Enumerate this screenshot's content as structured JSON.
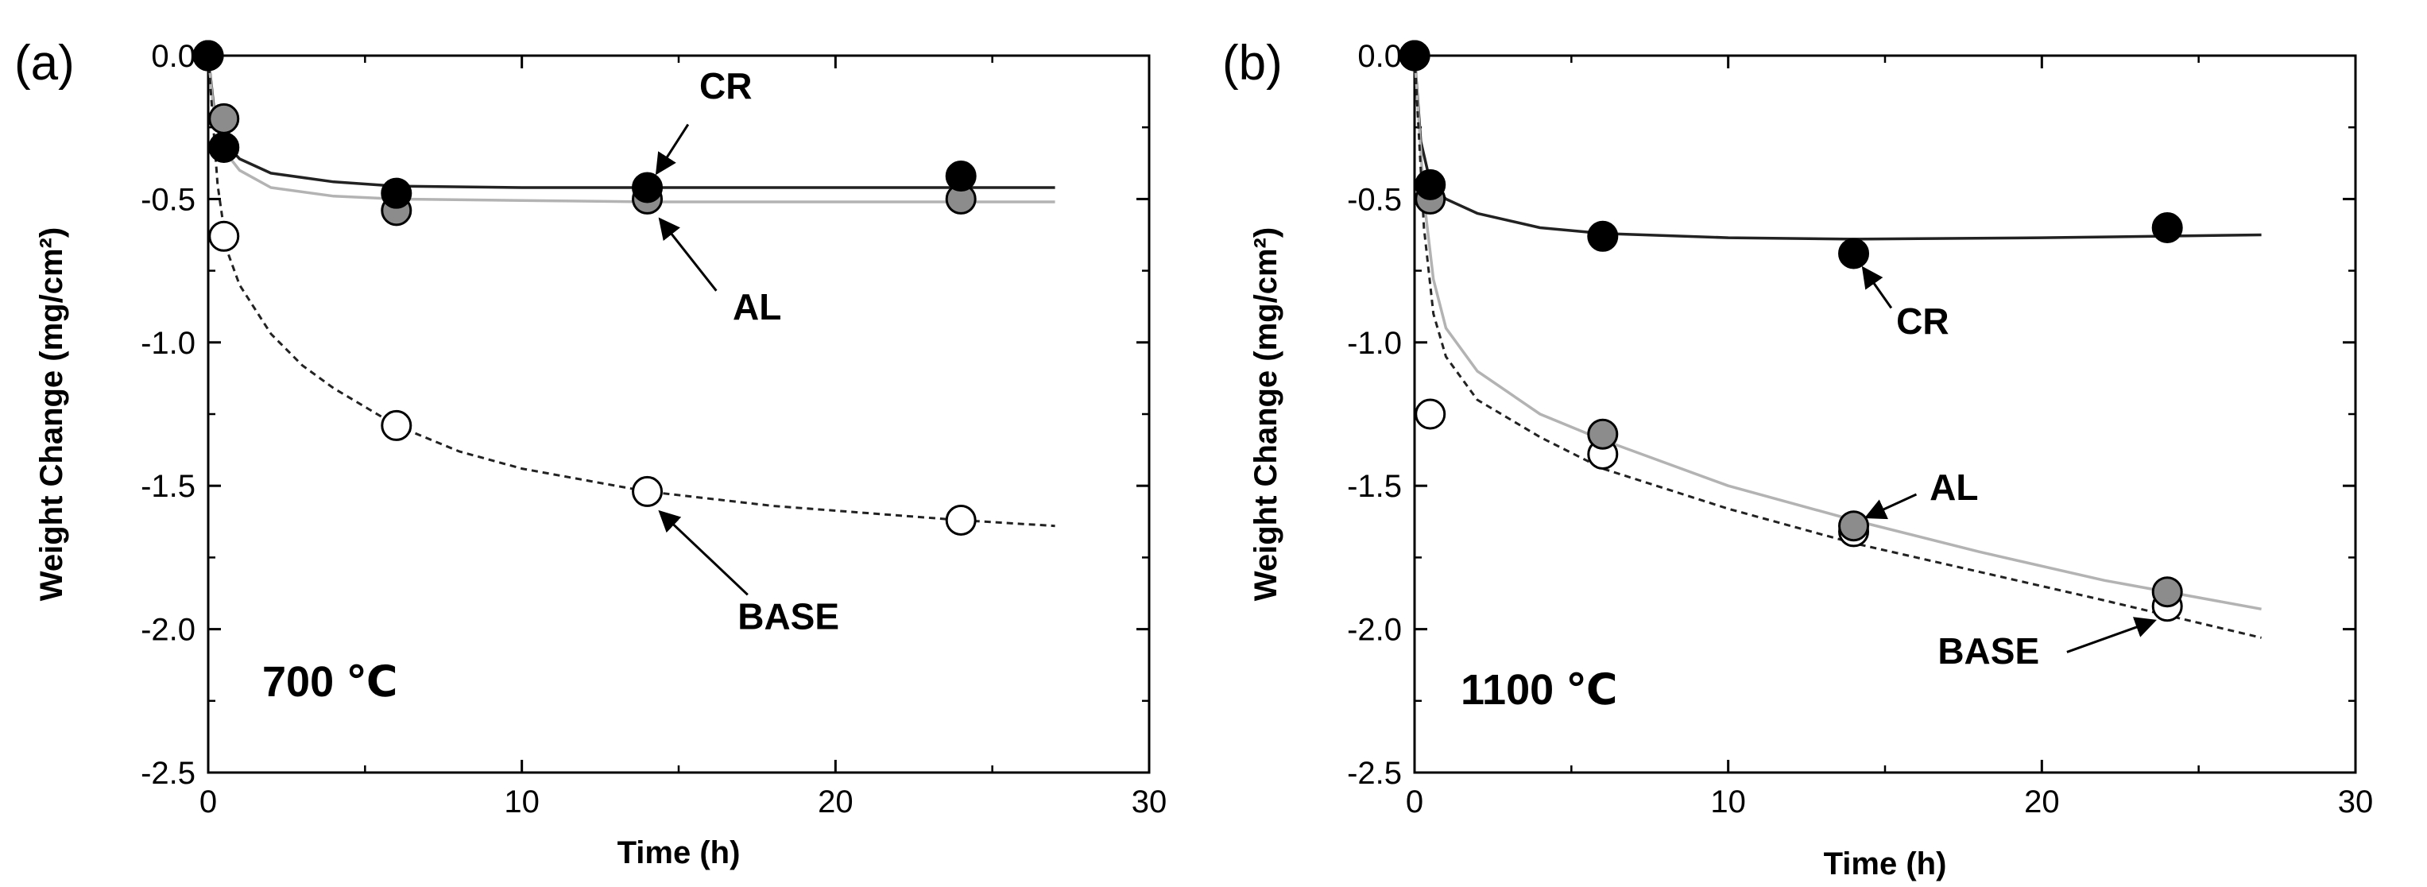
{
  "chart_data": [
    {
      "type": "scatter",
      "panel_label": "(a)",
      "annotation": "700 ℃",
      "xlabel": "Time (h)",
      "ylabel": "Weight Change (mg/cm²)",
      "xlim": [
        0,
        30
      ],
      "ylim": [
        -2.5,
        0.0
      ],
      "xticks": [
        "0",
        "10",
        "20",
        "30"
      ],
      "yticks": [
        "0.0",
        "-0.5",
        "-1.0",
        "-1.5",
        "-2.0",
        "-2.5"
      ],
      "series": [
        {
          "name": "CR",
          "marker": "filled",
          "color": "#000000",
          "x": [
            0,
            0.5,
            6,
            14,
            24
          ],
          "y": [
            0.0,
            -0.32,
            -0.48,
            -0.46,
            -0.42
          ],
          "fit": [
            [
              0,
              0
            ],
            [
              0.2,
              -0.2
            ],
            [
              0.5,
              -0.3
            ],
            [
              1,
              -0.36
            ],
            [
              2,
              -0.41
            ],
            [
              4,
              -0.44
            ],
            [
              6,
              -0.455
            ],
            [
              10,
              -0.46
            ],
            [
              14,
              -0.46
            ],
            [
              20,
              -0.46
            ],
            [
              27,
              -0.46
            ]
          ]
        },
        {
          "name": "AL",
          "marker": "gray",
          "color": "#8c8c8c",
          "x": [
            0,
            0.5,
            6,
            14,
            24
          ],
          "y": [
            0.0,
            -0.22,
            -0.54,
            -0.5,
            -0.5
          ],
          "fit": [
            [
              0,
              0
            ],
            [
              0.2,
              -0.22
            ],
            [
              0.5,
              -0.33
            ],
            [
              1,
              -0.4
            ],
            [
              2,
              -0.46
            ],
            [
              4,
              -0.49
            ],
            [
              6,
              -0.5
            ],
            [
              10,
              -0.505
            ],
            [
              14,
              -0.51
            ],
            [
              20,
              -0.51
            ],
            [
              27,
              -0.51
            ]
          ]
        },
        {
          "name": "BASE",
          "marker": "open",
          "color": "#ffffff",
          "x": [
            0,
            0.5,
            6,
            14,
            24
          ],
          "y": [
            0.0,
            -0.63,
            -1.29,
            -1.52,
            -1.62
          ],
          "fit": [
            [
              0,
              0
            ],
            [
              0.3,
              -0.45
            ],
            [
              0.6,
              -0.68
            ],
            [
              1,
              -0.8
            ],
            [
              2,
              -0.97
            ],
            [
              3,
              -1.08
            ],
            [
              4,
              -1.16
            ],
            [
              6,
              -1.29
            ],
            [
              8,
              -1.38
            ],
            [
              10,
              -1.44
            ],
            [
              14,
              -1.52
            ],
            [
              18,
              -1.57
            ],
            [
              24,
              -1.62
            ],
            [
              27,
              -1.64
            ]
          ]
        }
      ],
      "labels": [
        {
          "text": "CR",
          "lx": 16.5,
          "ly": -0.15,
          "ax1": 15.3,
          "ay1": -0.24,
          "ax2": 14.3,
          "ay2": -0.41
        },
        {
          "text": "AL",
          "lx": 17.5,
          "ly": -0.92,
          "ax1": 16.2,
          "ay1": -0.82,
          "ax2": 14.4,
          "ay2": -0.57
        },
        {
          "text": "BASE",
          "lx": 18.5,
          "ly": -2.0,
          "ax1": 17.2,
          "ay1": -1.88,
          "ax2": 14.4,
          "ay2": -1.59
        }
      ]
    },
    {
      "type": "scatter",
      "panel_label": "(b)",
      "annotation": "1100 ℃",
      "xlabel": "Time (h)",
      "ylabel": "Weight Change (mg/cm²)",
      "xlim": [
        0,
        30
      ],
      "ylim": [
        -2.5,
        0.0
      ],
      "xticks": [
        "0",
        "10",
        "20",
        "30"
      ],
      "yticks": [
        "0.0",
        "-0.5",
        "-1.0",
        "-1.5",
        "-2.0",
        "-2.5"
      ],
      "series": [
        {
          "name": "CR",
          "marker": "filled",
          "color": "#000000",
          "x": [
            0,
            0.5,
            6,
            14,
            24
          ],
          "y": [
            0.0,
            -0.45,
            -0.63,
            -0.69,
            -0.6
          ],
          "fit": [
            [
              0,
              0
            ],
            [
              0.2,
              -0.3
            ],
            [
              0.5,
              -0.44
            ],
            [
              1,
              -0.5
            ],
            [
              2,
              -0.55
            ],
            [
              4,
              -0.6
            ],
            [
              6,
              -0.62
            ],
            [
              10,
              -0.635
            ],
            [
              14,
              -0.64
            ],
            [
              20,
              -0.635
            ],
            [
              27,
              -0.625
            ]
          ]
        },
        {
          "name": "AL",
          "marker": "gray",
          "color": "#8c8c8c",
          "x": [
            0,
            0.5,
            6,
            14,
            24
          ],
          "y": [
            0.0,
            -0.5,
            -1.32,
            -1.64,
            -1.87
          ],
          "fit": [
            [
              0,
              0
            ],
            [
              0.3,
              -0.5
            ],
            [
              0.6,
              -0.78
            ],
            [
              1,
              -0.95
            ],
            [
              2,
              -1.1
            ],
            [
              4,
              -1.25
            ],
            [
              6,
              -1.34
            ],
            [
              10,
              -1.5
            ],
            [
              14,
              -1.62
            ],
            [
              18,
              -1.73
            ],
            [
              22,
              -1.83
            ],
            [
              27,
              -1.93
            ]
          ]
        },
        {
          "name": "BASE",
          "marker": "open",
          "color": "#ffffff",
          "x": [
            0,
            0.5,
            6,
            14,
            24
          ],
          "y": [
            0.0,
            -1.25,
            -1.39,
            -1.66,
            -1.92
          ],
          "fit": [
            [
              0,
              0
            ],
            [
              0.3,
              -0.6
            ],
            [
              0.6,
              -0.9
            ],
            [
              1,
              -1.05
            ],
            [
              2,
              -1.2
            ],
            [
              4,
              -1.33
            ],
            [
              6,
              -1.44
            ],
            [
              10,
              -1.58
            ],
            [
              14,
              -1.7
            ],
            [
              18,
              -1.8
            ],
            [
              22,
              -1.9
            ],
            [
              27,
              -2.03
            ]
          ]
        }
      ],
      "labels": [
        {
          "text": "CR",
          "lx": 16.2,
          "ly": -0.97,
          "ax1": 15.2,
          "ay1": -0.88,
          "ax2": 14.3,
          "ay2": -0.74
        },
        {
          "text": "AL",
          "lx": 17.2,
          "ly": -1.55,
          "ax1": 16.0,
          "ay1": -1.53,
          "ax2": 14.4,
          "ay2": -1.61
        },
        {
          "text": "BASE",
          "lx": 18.3,
          "ly": -2.12,
          "ax1": 20.8,
          "ay1": -2.08,
          "ax2": 23.6,
          "ay2": -1.97
        }
      ]
    }
  ]
}
